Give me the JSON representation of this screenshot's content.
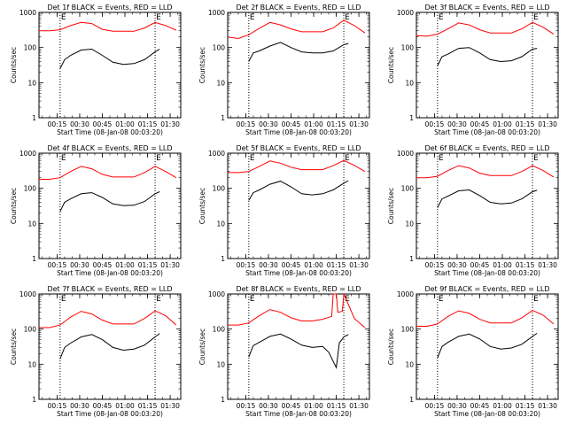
{
  "ylabel": "Counts/sec",
  "xlabel": "Start Time (08-Jan-08 00:03:20)",
  "x_ticks": [
    "00:15",
    "00:30",
    "00:45",
    "01:00",
    "01:15",
    "01:30"
  ],
  "y_ticks": [
    "1",
    "10",
    "100",
    "1000"
  ],
  "vline_markers": [
    "E",
    "E"
  ],
  "colors": {
    "events": "#000000",
    "lld": "#ff0000"
  },
  "chart_data": [
    {
      "type": "line",
      "title": "Det 1f BLACK = Events, RED = LLD",
      "x_range": [
        "00:03",
        "01:37"
      ],
      "y_log": true,
      "ylim": [
        1,
        1000
      ],
      "vlines": [
        "00:17",
        "01:20"
      ],
      "series": [
        {
          "name": "LLD",
          "color": "#ff0000",
          "x": [
            "00:03",
            "00:10",
            "00:17",
            "00:24",
            "00:31",
            "00:38",
            "00:45",
            "00:52",
            "00:59",
            "01:06",
            "01:13",
            "01:20",
            "01:27",
            "01:34"
          ],
          "y": [
            300,
            300,
            320,
            420,
            520,
            480,
            330,
            290,
            290,
            290,
            360,
            520,
            420,
            310
          ]
        },
        {
          "name": "Events",
          "color": "#000000",
          "x": [
            "00:17",
            "00:20",
            "00:24",
            "00:31",
            "00:38",
            "00:45",
            "00:52",
            "00:59",
            "01:06",
            "01:13",
            "01:20",
            "01:23"
          ],
          "y": [
            25,
            45,
            60,
            85,
            90,
            60,
            38,
            33,
            35,
            45,
            75,
            90
          ]
        }
      ]
    },
    {
      "type": "line",
      "title": "Det 2f BLACK = Events, RED = LLD",
      "x_range": [
        "00:03",
        "01:37"
      ],
      "y_log": true,
      "ylim": [
        1,
        1000
      ],
      "vlines": [
        "00:17",
        "01:20"
      ],
      "series": [
        {
          "name": "LLD",
          "color": "#ff0000",
          "x": [
            "00:03",
            "00:10",
            "00:17",
            "00:24",
            "00:31",
            "00:38",
            "00:45",
            "00:52",
            "00:59",
            "01:06",
            "01:13",
            "01:20",
            "01:27",
            "01:34"
          ],
          "y": [
            200,
            180,
            230,
            350,
            520,
            440,
            340,
            280,
            280,
            280,
            360,
            600,
            420,
            260
          ]
        },
        {
          "name": "Events",
          "color": "#000000",
          "x": [
            "00:17",
            "00:20",
            "00:24",
            "00:31",
            "00:38",
            "00:45",
            "00:52",
            "00:59",
            "01:06",
            "01:13",
            "01:20",
            "01:23"
          ],
          "y": [
            40,
            70,
            80,
            110,
            140,
            100,
            75,
            70,
            70,
            80,
            120,
            130
          ]
        }
      ]
    },
    {
      "type": "line",
      "title": "Det 3f BLACK = Events, RED = LLD",
      "x_range": [
        "00:03",
        "01:37"
      ],
      "y_log": true,
      "ylim": [
        1,
        1000
      ],
      "vlines": [
        "00:17",
        "01:20"
      ],
      "series": [
        {
          "name": "LLD",
          "color": "#ff0000",
          "x": [
            "00:03",
            "00:10",
            "00:17",
            "00:24",
            "00:31",
            "00:38",
            "00:45",
            "00:52",
            "00:59",
            "01:06",
            "01:13",
            "01:20",
            "01:27",
            "01:34"
          ],
          "y": [
            220,
            210,
            240,
            340,
            500,
            440,
            320,
            260,
            260,
            260,
            340,
            520,
            380,
            240
          ]
        },
        {
          "name": "Events",
          "color": "#000000",
          "x": [
            "00:17",
            "00:20",
            "00:24",
            "00:31",
            "00:38",
            "00:45",
            "00:52",
            "00:59",
            "01:06",
            "01:13",
            "01:20",
            "01:23"
          ],
          "y": [
            30,
            55,
            65,
            95,
            100,
            70,
            45,
            40,
            42,
            55,
            90,
            95
          ]
        }
      ]
    },
    {
      "type": "line",
      "title": "Det 4f BLACK = Events, RED = LLD",
      "x_range": [
        "00:03",
        "01:37"
      ],
      "y_log": true,
      "ylim": [
        1,
        1000
      ],
      "vlines": [
        "00:17",
        "01:20"
      ],
      "series": [
        {
          "name": "LLD",
          "color": "#ff0000",
          "x": [
            "00:03",
            "00:10",
            "00:17",
            "00:24",
            "00:31",
            "00:38",
            "00:45",
            "00:52",
            "00:59",
            "01:06",
            "01:13",
            "01:20",
            "01:27",
            "01:34"
          ],
          "y": [
            180,
            180,
            200,
            300,
            420,
            360,
            250,
            210,
            210,
            210,
            280,
            420,
            300,
            200
          ]
        },
        {
          "name": "Events",
          "color": "#000000",
          "x": [
            "00:17",
            "00:20",
            "00:24",
            "00:31",
            "00:38",
            "00:45",
            "00:52",
            "00:59",
            "01:06",
            "01:13",
            "01:20",
            "01:23"
          ],
          "y": [
            22,
            40,
            50,
            70,
            75,
            55,
            36,
            32,
            33,
            42,
            70,
            80
          ]
        }
      ]
    },
    {
      "type": "line",
      "title": "Det 5f BLACK = Events, RED = LLD",
      "x_range": [
        "00:03",
        "01:37"
      ],
      "y_log": true,
      "ylim": [
        1,
        1000
      ],
      "vlines": [
        "00:17",
        "01:20"
      ],
      "series": [
        {
          "name": "LLD",
          "color": "#ff0000",
          "x": [
            "00:03",
            "00:10",
            "00:17",
            "00:24",
            "00:31",
            "00:38",
            "00:45",
            "00:52",
            "00:59",
            "01:06",
            "01:13",
            "01:20",
            "01:27",
            "01:34"
          ],
          "y": [
            280,
            280,
            300,
            420,
            600,
            520,
            400,
            340,
            340,
            340,
            440,
            620,
            450,
            300
          ]
        },
        {
          "name": "Events",
          "color": "#000000",
          "x": [
            "00:17",
            "00:20",
            "00:24",
            "00:31",
            "00:38",
            "00:45",
            "00:52",
            "00:59",
            "01:06",
            "01:13",
            "01:20",
            "01:23"
          ],
          "y": [
            45,
            75,
            90,
            130,
            160,
            110,
            70,
            65,
            70,
            90,
            140,
            165
          ]
        }
      ]
    },
    {
      "type": "line",
      "title": "Det 6f BLACK = Events, RED = LLD",
      "x_range": [
        "00:03",
        "01:37"
      ],
      "y_log": true,
      "ylim": [
        1,
        1000
      ],
      "vlines": [
        "00:17",
        "01:20"
      ],
      "series": [
        {
          "name": "LLD",
          "color": "#ff0000",
          "x": [
            "00:03",
            "00:10",
            "00:17",
            "00:24",
            "00:31",
            "00:38",
            "00:45",
            "00:52",
            "00:59",
            "01:06",
            "01:13",
            "01:20",
            "01:27",
            "01:34"
          ],
          "y": [
            200,
            200,
            220,
            320,
            440,
            380,
            270,
            230,
            230,
            230,
            300,
            440,
            320,
            210
          ]
        },
        {
          "name": "Events",
          "color": "#000000",
          "x": [
            "00:17",
            "00:20",
            "00:24",
            "00:31",
            "00:38",
            "00:45",
            "00:52",
            "00:59",
            "01:06",
            "01:13",
            "01:20",
            "01:23"
          ],
          "y": [
            28,
            50,
            60,
            85,
            90,
            62,
            40,
            36,
            38,
            50,
            80,
            88
          ]
        }
      ]
    },
    {
      "type": "line",
      "title": "Det 7f BLACK = Events, RED = LLD",
      "x_range": [
        "00:03",
        "01:37"
      ],
      "y_log": true,
      "ylim": [
        1,
        1000
      ],
      "vlines": [
        "00:17",
        "01:20"
      ],
      "series": [
        {
          "name": "LLD",
          "color": "#ff0000",
          "x": [
            "00:03",
            "00:10",
            "00:17",
            "00:24",
            "00:31",
            "00:38",
            "00:45",
            "00:52",
            "00:59",
            "01:06",
            "01:13",
            "01:20",
            "01:27",
            "01:34"
          ],
          "y": [
            110,
            110,
            130,
            220,
            320,
            270,
            180,
            140,
            140,
            140,
            200,
            330,
            240,
            130
          ]
        },
        {
          "name": "Events",
          "color": "#000000",
          "x": [
            "00:17",
            "00:20",
            "00:24",
            "00:31",
            "00:38",
            "00:45",
            "00:52",
            "00:59",
            "01:06",
            "01:13",
            "01:20",
            "01:23"
          ],
          "y": [
            14,
            30,
            40,
            60,
            70,
            50,
            30,
            25,
            27,
            35,
            60,
            75
          ]
        }
      ]
    },
    {
      "type": "line",
      "title": "Det 8f BLACK = Events, RED = LLD",
      "x_range": [
        "00:03",
        "01:37"
      ],
      "y_log": true,
      "ylim": [
        1,
        1000
      ],
      "vlines": [
        "00:17",
        "01:20"
      ],
      "series": [
        {
          "name": "LLD",
          "color": "#ff0000",
          "x": [
            "00:03",
            "00:10",
            "00:17",
            "00:24",
            "00:31",
            "00:38",
            "00:45",
            "00:52",
            "00:59",
            "01:06",
            "01:12",
            "01:13",
            "01:15",
            "01:16",
            "01:19",
            "01:20",
            "01:27",
            "01:34"
          ],
          "y": [
            130,
            130,
            150,
            240,
            360,
            300,
            210,
            170,
            170,
            190,
            230,
            1000,
            1000,
            300,
            320,
            1000,
            200,
            110
          ]
        },
        {
          "name": "Events",
          "color": "#000000",
          "x": [
            "00:17",
            "00:20",
            "00:24",
            "00:31",
            "00:38",
            "00:45",
            "00:52",
            "00:59",
            "01:06",
            "01:10",
            "01:15",
            "01:17",
            "01:20",
            "01:23"
          ],
          "y": [
            16,
            34,
            42,
            62,
            72,
            52,
            35,
            30,
            32,
            22,
            8,
            40,
            60,
            70
          ]
        }
      ]
    },
    {
      "type": "line",
      "title": "Det 9f BLACK = Events, RED = LLD",
      "x_range": [
        "00:03",
        "01:37"
      ],
      "y_log": true,
      "ylim": [
        1,
        1000
      ],
      "vlines": [
        "00:17",
        "01:20"
      ],
      "series": [
        {
          "name": "LLD",
          "color": "#ff0000",
          "x": [
            "00:03",
            "00:10",
            "00:17",
            "00:24",
            "00:31",
            "00:38",
            "00:45",
            "00:52",
            "00:59",
            "01:06",
            "01:13",
            "01:20",
            "01:27",
            "01:34"
          ],
          "y": [
            120,
            120,
            140,
            230,
            330,
            280,
            190,
            150,
            150,
            150,
            210,
            340,
            250,
            140
          ]
        },
        {
          "name": "Events",
          "color": "#000000",
          "x": [
            "00:17",
            "00:20",
            "00:24",
            "00:31",
            "00:38",
            "00:45",
            "00:52",
            "00:59",
            "01:06",
            "01:13",
            "01:20",
            "01:23"
          ],
          "y": [
            15,
            32,
            42,
            62,
            72,
            52,
            32,
            27,
            29,
            37,
            62,
            76
          ]
        }
      ]
    }
  ]
}
